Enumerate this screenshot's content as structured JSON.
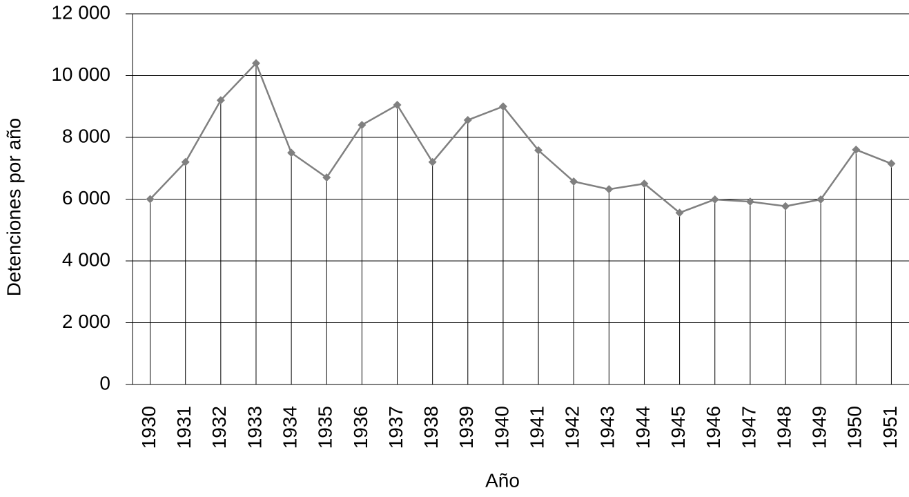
{
  "chart_data": {
    "type": "line",
    "x_label": "Año",
    "y_label": "Detenciones por año",
    "categories": [
      "1930",
      "1931",
      "1932",
      "1933",
      "1934",
      "1935",
      "1936",
      "1937",
      "1938",
      "1939",
      "1940",
      "1941",
      "1942",
      "1943",
      "1944",
      "1945",
      "1946",
      "1947",
      "1948",
      "1949",
      "1950",
      "1951"
    ],
    "values": [
      6000,
      7200,
      9200,
      10400,
      7500,
      6700,
      8400,
      9050,
      7200,
      8560,
      9000,
      7580,
      6570,
      6320,
      6500,
      5560,
      5990,
      5920,
      5770,
      5990,
      7600,
      7150
    ],
    "color": "#808080",
    "drop_lines": true,
    "ylim": [
      0,
      12000
    ],
    "yticks": [
      0,
      {
        "value": 2000,
        "label": "2 000"
      },
      {
        "value": 4000,
        "label": "4 000"
      },
      {
        "value": 6000,
        "label": "6 000"
      },
      {
        "value": 8000,
        "label": "8 000"
      },
      {
        "value": 10000,
        "label": "10 000"
      },
      {
        "value": 12000,
        "label": "12 000"
      }
    ],
    "grid": true
  }
}
